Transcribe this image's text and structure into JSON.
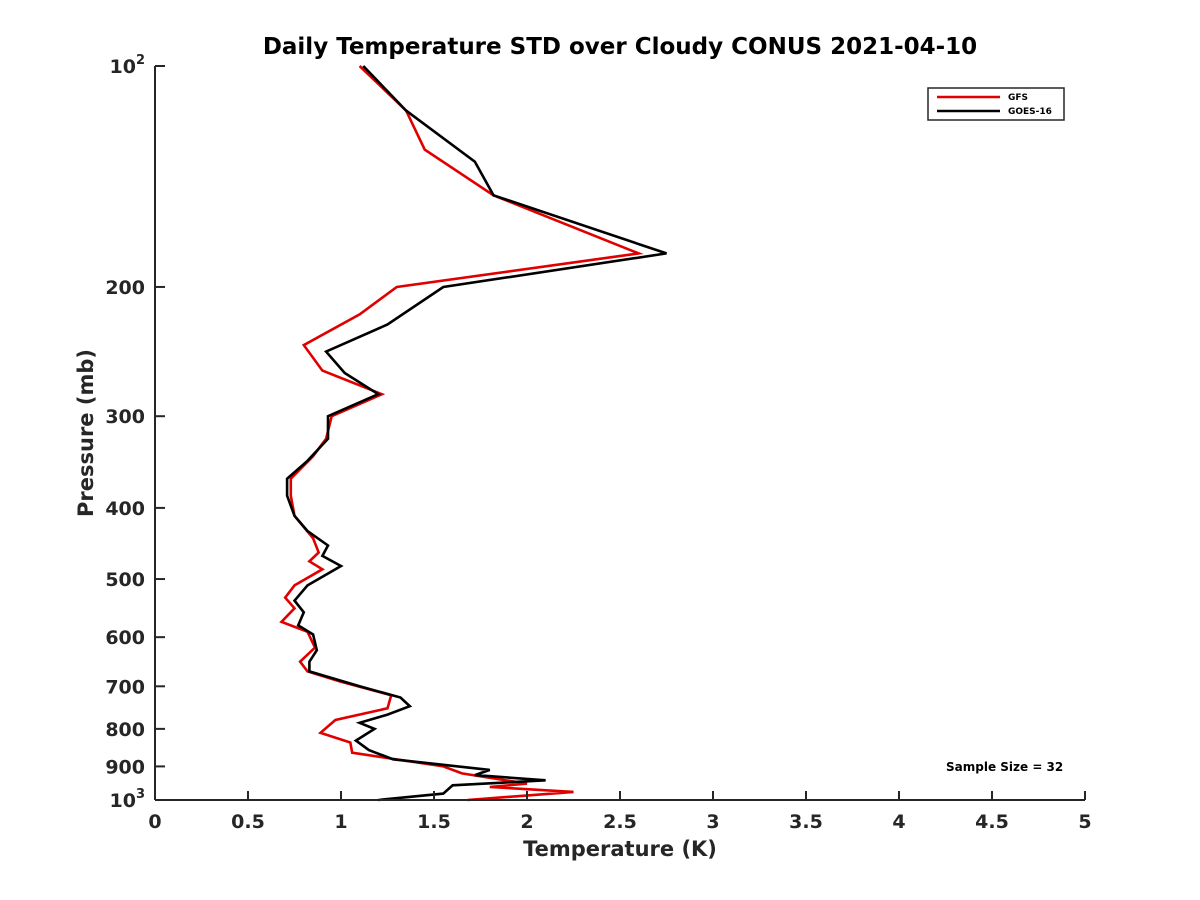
{
  "chart_data": {
    "type": "line",
    "title": "Daily Temperature STD over Cloudy CONUS 2021-04-10",
    "xlabel": "Temperature (K)",
    "ylabel": "Pressure (mb)",
    "xlim": [
      0,
      5
    ],
    "ylim": [
      100,
      1000
    ],
    "y_scale": "log",
    "y_reversed": true,
    "x_ticks": [
      0,
      0.5,
      1,
      1.5,
      2,
      2.5,
      3,
      3.5,
      4,
      4.5,
      5
    ],
    "x_tick_labels": [
      "0",
      "0.5",
      "1",
      "1.5",
      "2",
      "2.5",
      "3",
      "3.5",
      "4",
      "4.5",
      "5"
    ],
    "y_ticks": [
      100,
      200,
      300,
      400,
      500,
      600,
      700,
      800,
      900,
      1000
    ],
    "y_tick_labels": [
      {
        "base": "10",
        "exp": "2"
      },
      {
        "base": "200",
        "exp": ""
      },
      {
        "base": "300",
        "exp": ""
      },
      {
        "base": "400",
        "exp": ""
      },
      {
        "base": "500",
        "exp": ""
      },
      {
        "base": "600",
        "exp": ""
      },
      {
        "base": "700",
        "exp": ""
      },
      {
        "base": "800",
        "exp": ""
      },
      {
        "base": "900",
        "exp": ""
      },
      {
        "base": "10",
        "exp": "3"
      }
    ],
    "grid": false,
    "legend_position": "top-right",
    "annotation": "Sample Size = 32",
    "series": [
      {
        "name": "GFS",
        "color": "#e00000",
        "points": [
          [
            1.1,
            100
          ],
          [
            1.35,
            115
          ],
          [
            1.45,
            130
          ],
          [
            1.82,
            150
          ],
          [
            2.6,
            180
          ],
          [
            1.3,
            200
          ],
          [
            1.1,
            218
          ],
          [
            0.8,
            240
          ],
          [
            0.9,
            260
          ],
          [
            1.22,
            280
          ],
          [
            0.95,
            300
          ],
          [
            0.92,
            322
          ],
          [
            0.85,
            340
          ],
          [
            0.73,
            365
          ],
          [
            0.73,
            385
          ],
          [
            0.75,
            410
          ],
          [
            0.85,
            440
          ],
          [
            0.88,
            460
          ],
          [
            0.83,
            473
          ],
          [
            0.9,
            485
          ],
          [
            0.75,
            510
          ],
          [
            0.7,
            530
          ],
          [
            0.75,
            548
          ],
          [
            0.68,
            572
          ],
          [
            0.82,
            590
          ],
          [
            0.86,
            620
          ],
          [
            0.78,
            648
          ],
          [
            0.82,
            668
          ],
          [
            1.0,
            690
          ],
          [
            1.27,
            720
          ],
          [
            1.25,
            750
          ],
          [
            0.97,
            778
          ],
          [
            0.89,
            810
          ],
          [
            1.05,
            835
          ],
          [
            1.06,
            862
          ],
          [
            1.55,
            900
          ],
          [
            1.65,
            920
          ],
          [
            2.0,
            950
          ],
          [
            1.8,
            960
          ],
          [
            2.25,
            975
          ],
          [
            1.68,
            1000
          ]
        ]
      },
      {
        "name": "GOES-16",
        "color": "#000000",
        "points": [
          [
            1.12,
            100
          ],
          [
            1.35,
            115
          ],
          [
            1.72,
            135
          ],
          [
            1.82,
            150
          ],
          [
            2.75,
            180
          ],
          [
            1.55,
            200
          ],
          [
            1.25,
            225
          ],
          [
            0.92,
            245
          ],
          [
            1.02,
            262
          ],
          [
            1.2,
            280
          ],
          [
            0.93,
            300
          ],
          [
            0.93,
            322
          ],
          [
            0.82,
            345
          ],
          [
            0.71,
            365
          ],
          [
            0.71,
            385
          ],
          [
            0.75,
            410
          ],
          [
            0.82,
            430
          ],
          [
            0.93,
            450
          ],
          [
            0.9,
            465
          ],
          [
            1.0,
            480
          ],
          [
            0.82,
            510
          ],
          [
            0.75,
            535
          ],
          [
            0.8,
            555
          ],
          [
            0.77,
            578
          ],
          [
            0.85,
            595
          ],
          [
            0.87,
            625
          ],
          [
            0.83,
            648
          ],
          [
            0.83,
            668
          ],
          [
            1.1,
            700
          ],
          [
            1.32,
            725
          ],
          [
            1.37,
            745
          ],
          [
            1.25,
            765
          ],
          [
            1.1,
            785
          ],
          [
            1.18,
            800
          ],
          [
            1.08,
            830
          ],
          [
            1.15,
            855
          ],
          [
            1.28,
            880
          ],
          [
            1.8,
            910
          ],
          [
            1.72,
            925
          ],
          [
            2.1,
            940
          ],
          [
            1.6,
            955
          ],
          [
            1.55,
            980
          ],
          [
            1.2,
            1000
          ]
        ]
      }
    ]
  }
}
